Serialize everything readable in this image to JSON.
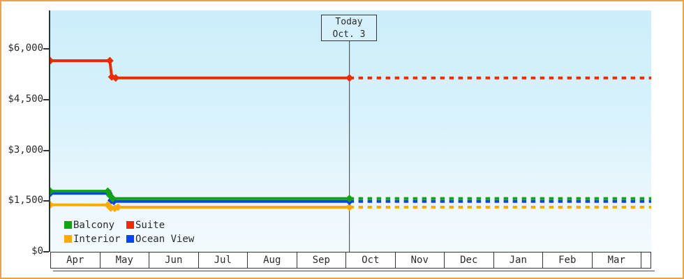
{
  "today_box": {
    "line1": "Today",
    "line2": "Oct. 3"
  },
  "colors": {
    "frame_border": "#eba24e",
    "plot_bg_top": "#cbeefa",
    "plot_bg_bottom": "#f3fafe",
    "axis": "#2e3436",
    "today_line": "#3c3c3c"
  },
  "chart_data": {
    "type": "line",
    "title": "",
    "xlabel": "",
    "ylabel": "",
    "x_axis": {
      "months": [
        "Apr",
        "May",
        "Jun",
        "Jul",
        "Aug",
        "Sep",
        "Oct",
        "Nov",
        "Dec",
        "Jan",
        "Feb",
        "Mar"
      ],
      "note": "monthly timeline, today marker at Oct. 3, dotted projection after today"
    },
    "y_axis": {
      "ticks": [
        {
          "value": 6000,
          "label": "$6,000"
        },
        {
          "value": 4500,
          "label": "$4,500"
        },
        {
          "value": 3000,
          "label": "$3,000"
        },
        {
          "value": 1500,
          "label": "$1,500"
        },
        {
          "value": 0,
          "label": "$0"
        }
      ],
      "ylim": [
        0,
        7130
      ],
      "grid": false
    },
    "today": {
      "label_line1": "Today",
      "label_line2": "Oct. 3",
      "month_position": 6.08
    },
    "legend_position": "bottom-left-inside",
    "series": [
      {
        "name": "Balcony",
        "color": "#11a311",
        "points": [
          [
            0,
            1790
          ],
          [
            1.17,
            1790
          ],
          [
            1.21,
            1670
          ],
          [
            1.27,
            1575
          ],
          [
            6.08,
            1575
          ]
        ],
        "projected_value": 1575
      },
      {
        "name": "Suite",
        "color": "#ee2b00",
        "points": [
          [
            0,
            5650
          ],
          [
            1.21,
            5650
          ],
          [
            1.25,
            5170
          ],
          [
            1.33,
            5140
          ],
          [
            6.08,
            5140
          ]
        ],
        "projected_value": 5140
      },
      {
        "name": "Interior",
        "color": "#ffaa00",
        "points": [
          [
            0,
            1390
          ],
          [
            1.17,
            1385
          ],
          [
            1.23,
            1295
          ],
          [
            1.31,
            1285
          ],
          [
            1.38,
            1320
          ],
          [
            6.08,
            1320
          ]
        ],
        "projected_value": 1320
      },
      {
        "name": "Ocean View",
        "color": "#0a41f0",
        "points": [
          [
            0,
            1730
          ],
          [
            1.19,
            1730
          ],
          [
            1.24,
            1520
          ],
          [
            1.29,
            1490
          ],
          [
            6.08,
            1490
          ]
        ],
        "projected_value": 1490
      }
    ],
    "draw_order": [
      1,
      2,
      3,
      0
    ]
  }
}
